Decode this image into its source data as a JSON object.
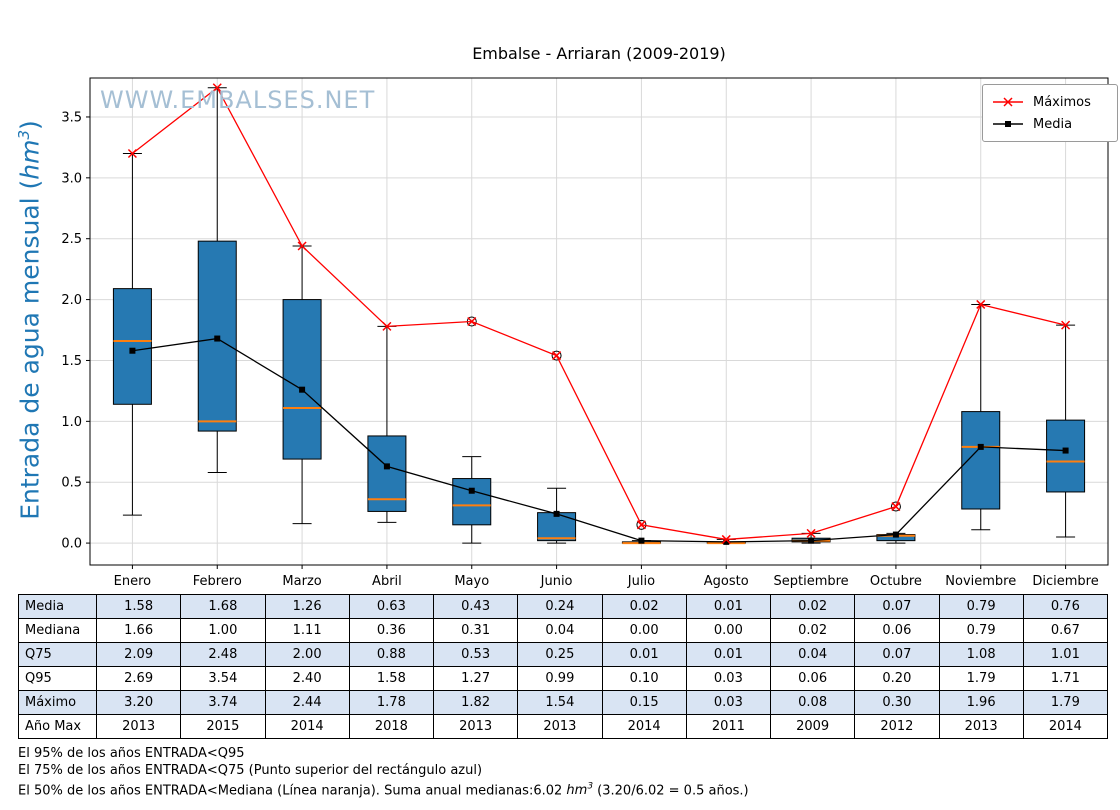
{
  "title": "Embalse - Arriaran (2009-2019)",
  "watermark": "WWW.EMBALSES.NET",
  "ylabel": {
    "prefix": "Entrada de agua mensual (",
    "unit": "hm",
    "sup": "3",
    "suffix": ")"
  },
  "legend": {
    "maximos": "Máximos",
    "media": "Media"
  },
  "chart_data": {
    "type": "boxplot",
    "title": "Embalse - Arriaran (2009-2019)",
    "ylabel": "Entrada de agua mensual (hm3)",
    "categories": [
      "Enero",
      "Febrero",
      "Marzo",
      "Abril",
      "Mayo",
      "Junio",
      "Julio",
      "Agosto",
      "Septiembre",
      "Octubre",
      "Noviembre",
      "Diciembre"
    ],
    "yticks": [
      "0.0",
      "0.5",
      "1.0",
      "1.5",
      "2.0",
      "2.5",
      "3.0",
      "3.5"
    ],
    "ylim": [
      -0.18,
      3.82
    ],
    "grid": true,
    "legend_position": "upper right",
    "box": {
      "q1": [
        1.14,
        0.92,
        0.69,
        0.26,
        0.15,
        0.02,
        0.0,
        0.0,
        0.01,
        0.02,
        0.28,
        0.42
      ],
      "median": [
        1.66,
        1.0,
        1.11,
        0.36,
        0.31,
        0.04,
        0.0,
        0.0,
        0.02,
        0.06,
        0.79,
        0.67
      ],
      "q3": [
        2.09,
        2.48,
        2.0,
        0.88,
        0.53,
        0.25,
        0.01,
        0.01,
        0.04,
        0.07,
        1.08,
        1.01
      ],
      "whisker_low": [
        0.23,
        0.58,
        0.16,
        0.17,
        0.0,
        0.0,
        0.0,
        0.0,
        0.0,
        0.0,
        0.11,
        0.05
      ],
      "whisker_high": [
        3.2,
        3.74,
        2.44,
        1.78,
        0.71,
        0.45,
        0.02,
        0.03,
        0.08,
        0.08,
        1.96,
        1.79
      ],
      "outliers": [
        [],
        [],
        [],
        [],
        [
          1.82
        ],
        [
          1.54
        ],
        [
          0.15
        ],
        [],
        [],
        [
          0.3
        ],
        [],
        []
      ]
    },
    "series": [
      {
        "name": "Maximos",
        "label": "Máximos",
        "color": "#ff0000",
        "marker": "x",
        "values": [
          3.2,
          3.74,
          2.44,
          1.78,
          1.82,
          1.54,
          0.15,
          0.03,
          0.08,
          0.3,
          1.96,
          1.79
        ]
      },
      {
        "name": "Media",
        "label": "Media",
        "color": "#000000",
        "marker": "square",
        "values": [
          1.58,
          1.68,
          1.26,
          0.63,
          0.43,
          0.24,
          0.02,
          0.01,
          0.02,
          0.07,
          0.79,
          0.76
        ]
      }
    ],
    "colors": {
      "box_fill": "#2679b2",
      "median_line": "#ff7f0e",
      "grid": "#d9d9d9",
      "ylabel": "#1f77b4",
      "watermark": "#a5bfd4"
    }
  },
  "table": {
    "row_headers": [
      "Media",
      "Mediana",
      "Q75",
      "Q95",
      "Máximo",
      "Año Max"
    ],
    "rows": [
      [
        "1.58",
        "1.68",
        "1.26",
        "0.63",
        "0.43",
        "0.24",
        "0.02",
        "0.01",
        "0.02",
        "0.07",
        "0.79",
        "0.76"
      ],
      [
        "1.66",
        "1.00",
        "1.11",
        "0.36",
        "0.31",
        "0.04",
        "0.00",
        "0.00",
        "0.02",
        "0.06",
        "0.79",
        "0.67"
      ],
      [
        "2.09",
        "2.48",
        "2.00",
        "0.88",
        "0.53",
        "0.25",
        "0.01",
        "0.01",
        "0.04",
        "0.07",
        "1.08",
        "1.01"
      ],
      [
        "2.69",
        "3.54",
        "2.40",
        "1.58",
        "1.27",
        "0.99",
        "0.10",
        "0.03",
        "0.06",
        "0.20",
        "1.79",
        "1.71"
      ],
      [
        "3.20",
        "3.74",
        "2.44",
        "1.78",
        "1.82",
        "1.54",
        "0.15",
        "0.03",
        "0.08",
        "0.30",
        "1.96",
        "1.79"
      ],
      [
        "2013",
        "2015",
        "2014",
        "2018",
        "2013",
        "2013",
        "2014",
        "2011",
        "2009",
        "2012",
        "2013",
        "2014"
      ]
    ]
  },
  "notes": {
    "line1": "El 95% de los años ENTRADA<Q95",
    "line2": "El 75% de los años ENTRADA<Q75 (Punto superior del rectángulo azul)",
    "line3_prefix": "El 50% de los años ENTRADA<Mediana (Línea naranja). Suma anual medianas:6.02 ",
    "line3_unit": "hm",
    "line3_sup": "3",
    "line3_suffix": " (3.20/6.02 = 0.5 años.)"
  }
}
